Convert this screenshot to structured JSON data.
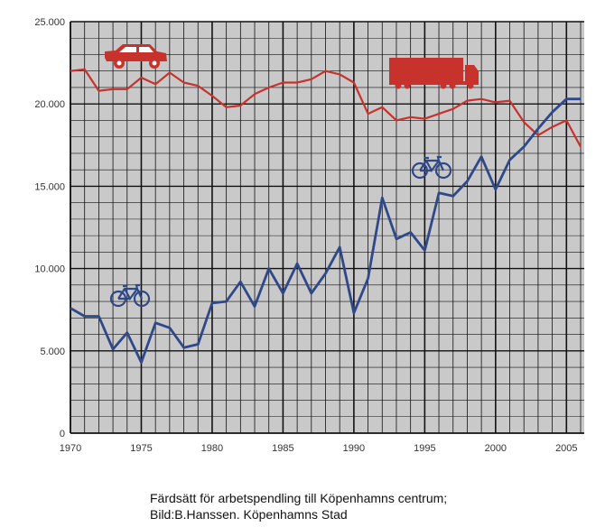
{
  "colors": {
    "plot_background": "#c9c9c9",
    "grid": "#111111",
    "car_series": "#c8322c",
    "bicycle_series": "#2f4889"
  },
  "icons": {
    "car": "car-icon",
    "truck": "truck-icon",
    "bicycle_1": "bicycle-icon",
    "bicycle_2": "bicycle-icon"
  },
  "caption": {
    "line1": "Färdsätt för arbetspendling till Köpenhamns centrum;",
    "line2": "Bild:B.Hanssen. Köpenhamns Stad"
  },
  "chart_data": {
    "type": "line",
    "title": "",
    "xlabel": "",
    "ylabel": "",
    "xlim": [
      1970,
      2006
    ],
    "ylim": [
      0,
      25000
    ],
    "grid": true,
    "legend": "none",
    "x_tick_labels": [
      "1970",
      "1975",
      "1980",
      "1985",
      "1990",
      "1995",
      "2000",
      "2005"
    ],
    "y_tick_labels": [
      "0",
      "5.000",
      "10.000",
      "15.000",
      "20.000",
      "25.000"
    ],
    "x": [
      1970,
      1971,
      1972,
      1973,
      1974,
      1975,
      1976,
      1977,
      1978,
      1979,
      1980,
      1981,
      1982,
      1983,
      1984,
      1985,
      1986,
      1987,
      1988,
      1989,
      1990,
      1991,
      1992,
      1993,
      1994,
      1995,
      1996,
      1997,
      1998,
      1999,
      2000,
      2001,
      2002,
      2003,
      2004,
      2005,
      2006
    ],
    "series": [
      {
        "values": [
          22000,
          22100,
          20800,
          20900,
          20900,
          21600,
          21200,
          21900,
          21300,
          21100,
          20500,
          19800,
          19900,
          20600,
          21000,
          21300,
          21300,
          21500,
          22000,
          21800,
          21300,
          19400,
          19800,
          19000,
          19200,
          19100,
          19400,
          19700,
          20200,
          20300,
          20100,
          20200,
          18900,
          18100,
          18600,
          19000,
          17400
        ]
      },
      {
        "values": [
          7600,
          7100,
          7100,
          5100,
          6100,
          4300,
          6700,
          6400,
          5200,
          5400,
          7900,
          8000,
          9200,
          7700,
          10000,
          8500,
          10300,
          8500,
          9700,
          11300,
          7300,
          9400,
          14300,
          11800,
          12200,
          11100,
          14600,
          14400,
          15300,
          16800,
          14800,
          16600,
          17400,
          18500,
          19500,
          20300,
          20300
        ]
      }
    ]
  }
}
